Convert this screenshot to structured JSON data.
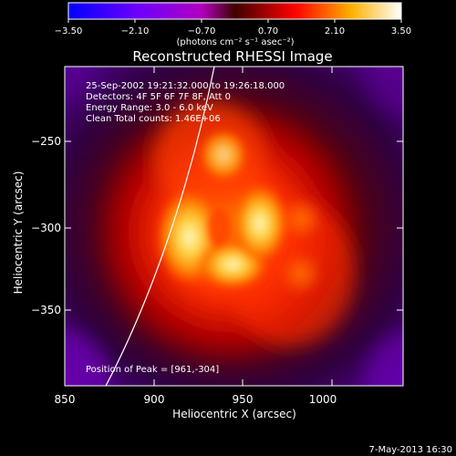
{
  "colorbar": {
    "ticks": [
      "−3.50",
      "−2.10",
      "−0.70",
      "0.70",
      "2.10",
      "3.50"
    ],
    "label": "(photons cm⁻² s⁻¹ asec⁻²)",
    "range": [
      -3.5,
      3.5
    ],
    "colors": [
      "#0000ff",
      "#6a00ff",
      "#b000c0",
      "#4a0000",
      "#ff0000",
      "#ffb000",
      "#ffffff"
    ]
  },
  "title": "Reconstructed RHESSI Image",
  "info_lines": [
    "25-Sep-2002 19:21:32.000 to 19:26:18.000",
    "Detectors: 4F 5F 6F 7F 8F, Att 0",
    "Energy Range: 3.0 - 6.0 keV",
    "Clean     Total counts: 1.46E+06"
  ],
  "peak_text": "Position of Peak = [961,-304]",
  "axes": {
    "xlabel": "Heliocentric X (arcsec)",
    "ylabel": "Heliocentric Y (arcsec)",
    "xticks": [
      "850",
      "900",
      "950",
      "1000"
    ],
    "yticks": [
      "−250",
      "−300",
      "−350"
    ],
    "xrange": [
      850,
      1040
    ],
    "yrange": [
      -395,
      -210
    ]
  },
  "timestamp": "7-May-2013 16:30"
}
